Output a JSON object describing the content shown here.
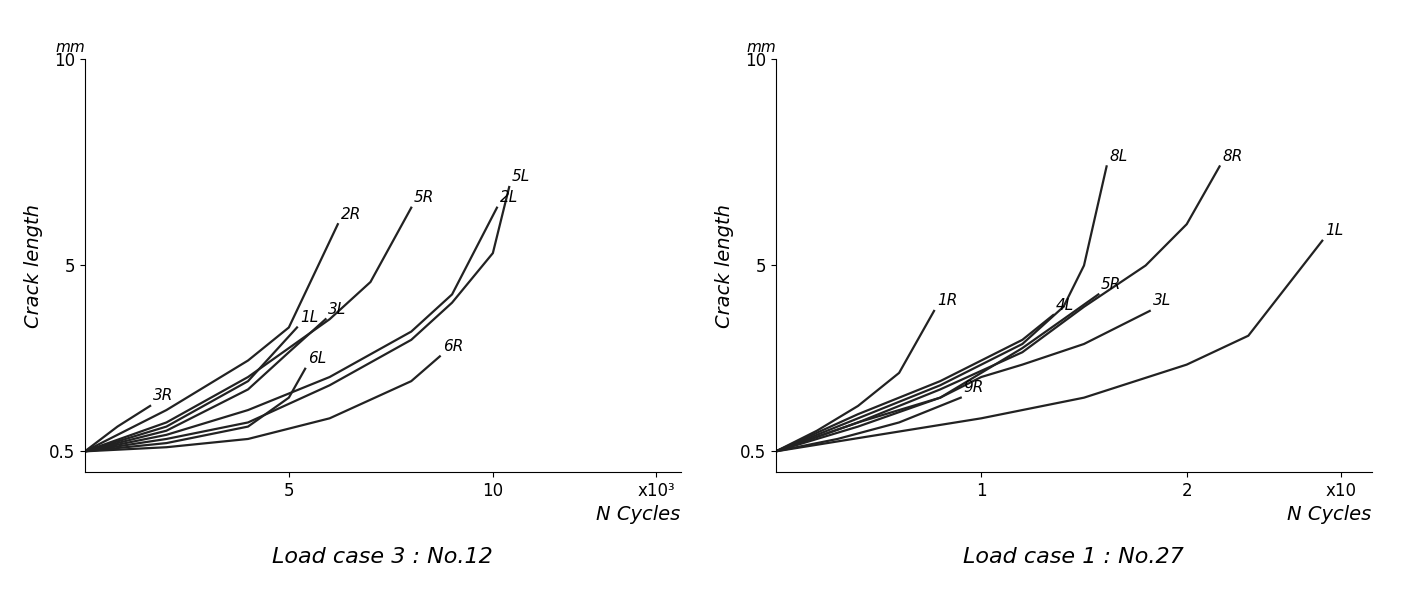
{
  "chart_data": [
    {
      "type": "line",
      "title": "Load case 3 : No.12",
      "x_label": "N Cycles",
      "y_label": "Crack length",
      "y_unit": "mm",
      "xlim": [
        0,
        14.6
      ],
      "xticks": [
        5,
        10,
        {
          "value": 14,
          "label": "x10³"
        }
      ],
      "ylim": [
        0,
        10
      ],
      "yticks": [
        0.5,
        5,
        10
      ],
      "color": "#222222",
      "series": [
        {
          "name": "3R",
          "x": [
            0,
            0.8,
            1.6
          ],
          "values": [
            0.5,
            1.1,
            1.6
          ]
        },
        {
          "name": "2R",
          "x": [
            0,
            2,
            4,
            5,
            6.2
          ],
          "values": [
            0.5,
            1.5,
            2.7,
            3.5,
            6.0
          ]
        },
        {
          "name": "1L",
          "x": [
            0,
            2,
            4,
            5.2
          ],
          "values": [
            0.5,
            1.1,
            2.2,
            3.5
          ]
        },
        {
          "name": "5R",
          "x": [
            0,
            2,
            4,
            5,
            6,
            7,
            8
          ],
          "values": [
            0.5,
            1.2,
            2.3,
            3.0,
            3.7,
            4.6,
            6.4
          ]
        },
        {
          "name": "3L",
          "x": [
            0,
            2,
            4,
            5,
            5.9
          ],
          "values": [
            0.5,
            1.0,
            2.0,
            2.9,
            3.7
          ]
        },
        {
          "name": "6L",
          "x": [
            0,
            2,
            4,
            5,
            5.4
          ],
          "values": [
            0.5,
            0.7,
            1.1,
            1.8,
            2.5
          ]
        },
        {
          "name": "2L",
          "x": [
            0,
            2,
            4,
            6,
            8,
            9,
            10.1
          ],
          "values": [
            0.5,
            0.9,
            1.5,
            2.3,
            3.4,
            4.3,
            6.4
          ]
        },
        {
          "name": "5L",
          "x": [
            0,
            2,
            4,
            6,
            8,
            9,
            10,
            10.4
          ],
          "values": [
            0.5,
            0.8,
            1.2,
            2.1,
            3.2,
            4.1,
            5.3,
            6.9
          ]
        },
        {
          "name": "6R",
          "x": [
            0,
            2,
            4,
            6,
            8,
            8.7
          ],
          "values": [
            0.5,
            0.6,
            0.8,
            1.3,
            2.2,
            2.8
          ]
        }
      ]
    },
    {
      "type": "line",
      "title": "Load case 1 : No.27",
      "x_label": "N Cycles",
      "y_label": "Crack length",
      "y_unit": "mm",
      "xlim": [
        0,
        2.9
      ],
      "xticks": [
        1,
        2,
        {
          "value": 2.75,
          "label": "x10"
        }
      ],
      "ylim": [
        0,
        10
      ],
      "yticks": [
        0.5,
        5,
        10
      ],
      "color": "#222222",
      "series": [
        {
          "name": "1R",
          "x": [
            0,
            0.2,
            0.4,
            0.6,
            0.77
          ],
          "values": [
            0.5,
            1.0,
            1.6,
            2.4,
            3.9
          ]
        },
        {
          "name": "4L",
          "x": [
            0,
            0.4,
            0.8,
            1.2,
            1.35
          ],
          "values": [
            0.5,
            1.4,
            2.2,
            3.2,
            3.8
          ]
        },
        {
          "name": "8L",
          "x": [
            0,
            0.4,
            0.8,
            1.2,
            1.4,
            1.5,
            1.61
          ],
          "values": [
            0.5,
            1.3,
            2.1,
            3.1,
            4.0,
            5.0,
            7.4
          ]
        },
        {
          "name": "8R",
          "x": [
            0,
            0.4,
            0.8,
            1.2,
            1.5,
            1.8,
            2.0,
            2.16
          ],
          "values": [
            0.5,
            1.2,
            2.0,
            2.9,
            4.0,
            5.0,
            6.0,
            7.4
          ]
        },
        {
          "name": "5R",
          "x": [
            0,
            0.4,
            0.8,
            1.2,
            1.4,
            1.57
          ],
          "values": [
            0.5,
            1.1,
            1.8,
            3.0,
            3.7,
            4.3
          ]
        },
        {
          "name": "3L",
          "x": [
            0,
            0.4,
            0.8,
            1.0,
            1.2,
            1.5,
            1.82
          ],
          "values": [
            0.5,
            1.2,
            1.8,
            2.3,
            2.6,
            3.1,
            3.9
          ]
        },
        {
          "name": "9R",
          "x": [
            0,
            0.3,
            0.6,
            0.9
          ],
          "values": [
            0.5,
            0.8,
            1.2,
            1.8
          ]
        },
        {
          "name": "1L",
          "x": [
            0,
            0.5,
            1.0,
            1.5,
            2.0,
            2.3,
            2.66
          ],
          "values": [
            0.5,
            0.9,
            1.3,
            1.8,
            2.6,
            3.3,
            5.6
          ]
        }
      ]
    }
  ]
}
